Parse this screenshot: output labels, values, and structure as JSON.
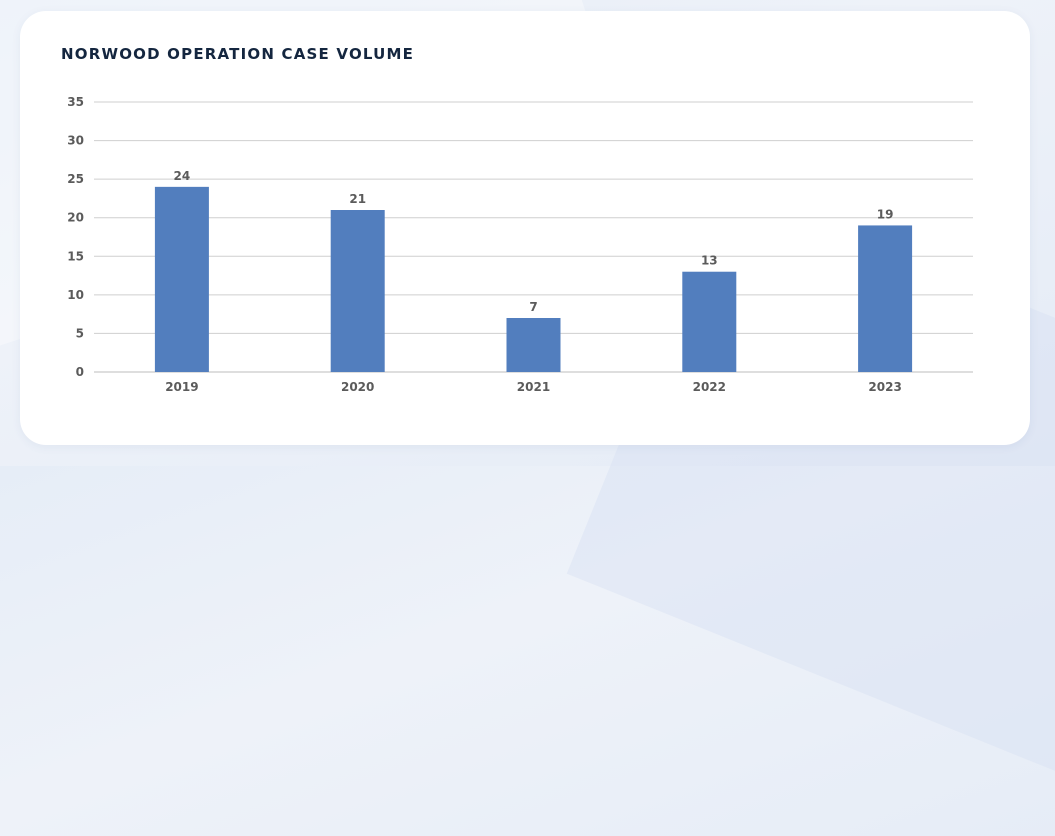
{
  "chart_data": {
    "type": "bar",
    "title": "NORWOOD OPERATION CASE VOLUME",
    "xlabel": "",
    "ylabel": "",
    "categories": [
      "2019",
      "2020",
      "2021",
      "2022",
      "2023"
    ],
    "values": [
      24,
      21,
      7,
      13,
      19
    ],
    "ylim": [
      0,
      35
    ],
    "yticks": [
      0,
      5,
      10,
      15,
      20,
      25,
      30,
      35
    ],
    "grid": true,
    "data_labels": true,
    "bar_color": "#527ebe",
    "grid_color": "#cfcfcf"
  }
}
